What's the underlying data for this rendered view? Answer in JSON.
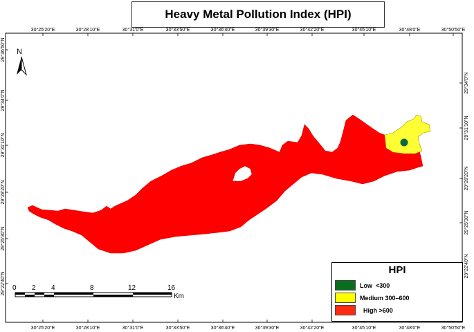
{
  "title": "Heavy Metal Pollution Index (HPI)",
  "north_arrow": {
    "label": "N"
  },
  "top_ticks": [
    "30°25'20\"E",
    "30°28'10\"E",
    "30°31'0\"E",
    "30°33'50\"E",
    "30°36'40\"E",
    "30°39'30\"E",
    "30°42'20\"E",
    "30°45'10\"E",
    "30°48'0\"E",
    "30°50'50\"E"
  ],
  "bottom_ticks": [
    "30°25'20\"E",
    "30°28'10\"E",
    "30°31'0\"E",
    "30°33'50\"E",
    "30°36'40\"E",
    "30°39'30\"E",
    "30°42'20\"E",
    "30°45'10\"E",
    "30°48'0\"E",
    "30°50'50\"E"
  ],
  "left_ticks": [
    "29°36'50\"N",
    "29°34'0\"N",
    "29°31'10\"N",
    "29°28'20\"N",
    "29°25'30\"N",
    "29°22'40\"N"
  ],
  "right_ticks": [
    "29°34'0\"N",
    "29°31'10\"N",
    "29°28'20\"N",
    "29°25'30\"N",
    "29°22'40\"N"
  ],
  "legend": {
    "title": "HPI",
    "items": [
      {
        "label": "Low  <300",
        "color": "#0a6e1e"
      },
      {
        "label": "Medium 300–600",
        "color": "#ffff00"
      },
      {
        "label": "  High >600",
        "color": "#ff2a10"
      }
    ]
  },
  "scale_bar": {
    "labels": [
      "0",
      "2",
      "4",
      "8",
      "12",
      "16"
    ],
    "unit": "Km"
  },
  "colors": {
    "high": "#ff0000",
    "medium": "#ffff33",
    "low": "#0a6a3a"
  }
}
